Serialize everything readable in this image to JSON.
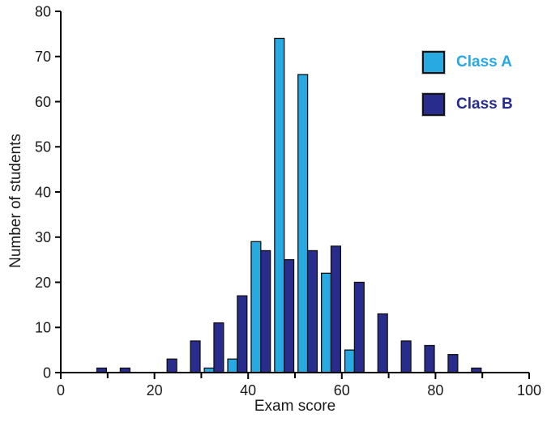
{
  "chart_data": {
    "type": "bar",
    "subtype": "paired-histogram",
    "title": "",
    "xlabel": "Exam score",
    "ylabel": "Number of students",
    "xlim": [
      0,
      100
    ],
    "ylim": [
      0,
      80
    ],
    "grid": false,
    "legend_position": "top-right",
    "bin_width": 5,
    "bin_starts": [
      0,
      5,
      10,
      15,
      20,
      25,
      30,
      35,
      40,
      45,
      50,
      55,
      60,
      65,
      70,
      75,
      80,
      85,
      90,
      95
    ],
    "series": [
      {
        "name": "Class A",
        "color": "#29A9E1",
        "values": [
          0,
          0,
          0,
          0,
          0,
          0,
          1,
          3,
          29,
          74,
          66,
          22,
          5,
          0,
          0,
          0,
          0,
          0,
          0,
          0
        ]
      },
      {
        "name": "Class B",
        "color": "#282C8C",
        "values": [
          0,
          1,
          1,
          0,
          3,
          7,
          11,
          17,
          27,
          25,
          27,
          28,
          20,
          13,
          7,
          6,
          4,
          1,
          0,
          0
        ]
      }
    ],
    "x_major_ticks": [
      0,
      20,
      40,
      60,
      80,
      100
    ],
    "x_minor_ticks": [
      10,
      30,
      50,
      70,
      90
    ],
    "y_ticks": [
      0,
      10,
      20,
      30,
      40,
      50,
      60,
      70,
      80
    ],
    "bar_stroke_color": "#101010",
    "axis_color": "#000000"
  }
}
